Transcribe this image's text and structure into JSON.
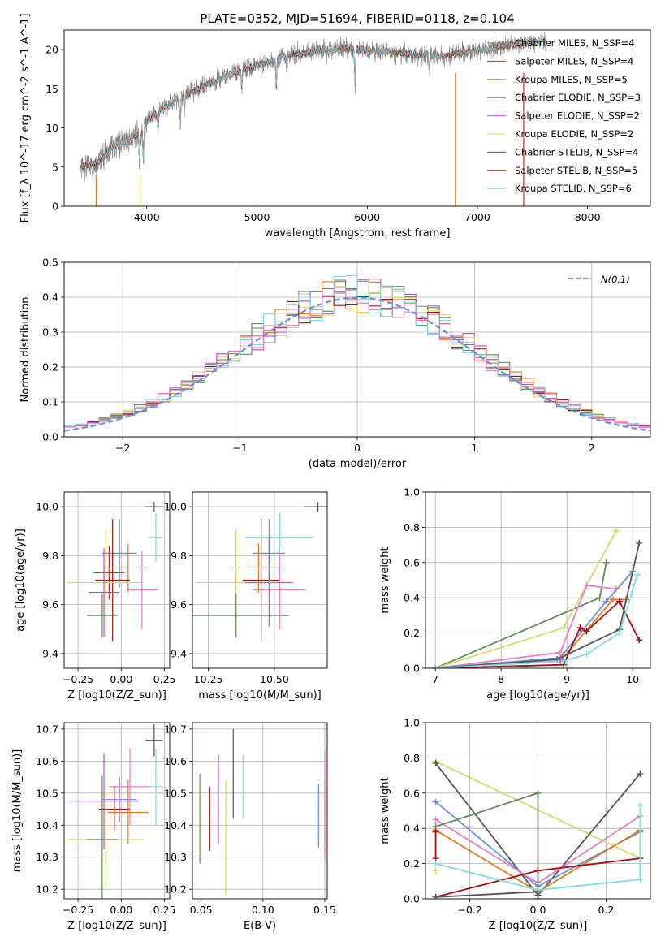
{
  "figure": {
    "title": "PLATE=0352, MJD=51694, FIBERID=0118, z=0.104"
  },
  "colors": [
    "#7f7f7f",
    "#d62728",
    "#e07b1a",
    "#5e8c5e",
    "#b452d8",
    "#d4d96b",
    "#555555",
    "#a31212",
    "#7fdbe4",
    "#6a8fdf",
    "#e77fc0"
  ],
  "chart_data": [
    {
      "id": "spectrum",
      "type": "line",
      "xlabel": "wavelength [Angstrom, rest frame]",
      "ylabel": "Flux [f_λ 10^-17 erg cm^-2 s^-1 A^-1]",
      "xlim": [
        3250,
        8570
      ],
      "ylim": [
        0,
        22.5
      ],
      "xticks": [
        4000,
        5000,
        6000,
        7000,
        8000
      ],
      "yticks": [
        0,
        5,
        10,
        15,
        20
      ],
      "grid": false,
      "legend_position": "top-right",
      "continuum": {
        "x": [
          3400,
          3550,
          3700,
          3850,
          3950,
          4000,
          4150,
          4300,
          4500,
          4700,
          4900,
          5100,
          5300,
          5500,
          5800,
          6100,
          6400,
          6700,
          7000,
          7300,
          7600
        ],
        "y": [
          5.0,
          5.6,
          7.6,
          8.6,
          9.4,
          10.8,
          12.5,
          13.8,
          15.2,
          16.5,
          17.5,
          18.5,
          19.3,
          19.7,
          20.2,
          19.8,
          19.4,
          19.2,
          19.9,
          20.6,
          21.1
        ]
      },
      "series": [
        {
          "name": "Chabrier MILES, N_SSP=4",
          "color": "#7f7f7f"
        },
        {
          "name": "Salpeter MILES, N_SSP=4",
          "color": "#d62728"
        },
        {
          "name": "Kroupa MILES, N_SSP=5",
          "color": "#e07b1a"
        },
        {
          "name": "Chabrier ELODIE, N_SSP=3",
          "color": "#5e8c5e"
        },
        {
          "name": "Salpeter ELODIE, N_SSP=2",
          "color": "#b452d8"
        },
        {
          "name": "Kroupa ELODIE, N_SSP=2",
          "color": "#d4d96b"
        },
        {
          "name": "Chabrier STELIB, N_SSP=4",
          "color": "#555555"
        },
        {
          "name": "Salpeter STELIB, N_SSP=5",
          "color": "#a31212"
        },
        {
          "name": "Kroupa STELIB, N_SSP=6",
          "color": "#7fdbe4"
        }
      ]
    },
    {
      "id": "residual-hist",
      "type": "line",
      "xlabel": "(data-model)/error",
      "ylabel": "Normed distribution",
      "xlim": [
        -2.5,
        2.5
      ],
      "ylim": [
        0,
        0.5
      ],
      "xticks": [
        -2,
        -1,
        0,
        1,
        2
      ],
      "xtick_labels": [
        "−2",
        "−1",
        "0",
        "1",
        "2"
      ],
      "yticks": [
        0.0,
        0.1,
        0.2,
        0.3,
        0.4,
        0.5
      ],
      "grid": true,
      "legend_position": "top-right",
      "legend": "N(0,1)",
      "bin_width": 0.1,
      "reference_curve": "standard normal density",
      "series_colors": [
        "#7f7f7f",
        "#e07b1a",
        "#5e8c5e",
        "#b452d8",
        "#d4d96b",
        "#a31212",
        "#7fdbe4",
        "#e77fc0"
      ]
    },
    {
      "id": "age-vs-Z",
      "type": "scatter",
      "xlabel": "Z [log10(Z/Z_sun)]",
      "ylabel": "age  [log10(age/yr)]",
      "xlim": [
        -0.33,
        0.28
      ],
      "ylim": [
        9.34,
        10.06
      ],
      "xticks": [
        -0.25,
        0.0,
        0.25
      ],
      "xtick_labels": [
        "−0.25",
        "0.00",
        "0.25"
      ],
      "yticks": [
        9.4,
        9.6,
        9.8,
        10.0
      ],
      "grid": true,
      "points": [
        {
          "x": 0.19,
          "xerr": 0.05,
          "y": 10.0,
          "yerr": 0.02,
          "color": "#555555"
        },
        {
          "x": 0.2,
          "xerr": 0.04,
          "y": 9.875,
          "yerr": 0.1,
          "color": "#7fdbe4"
        },
        {
          "x": -0.01,
          "xerr": 0.1,
          "y": 9.81,
          "yerr": 0.14,
          "color": "#6a8fdf"
        },
        {
          "x": 0.04,
          "xerr": 0.12,
          "y": 9.75,
          "yerr": 0.1,
          "color": "#e07b1a"
        },
        {
          "x": -0.07,
          "xerr": 0.09,
          "y": 9.73,
          "yerr": 0.11,
          "color": "#d62728"
        },
        {
          "x": -0.05,
          "xerr": 0.1,
          "y": 9.7,
          "yerr": 0.25,
          "color": "#a31212"
        },
        {
          "x": -0.09,
          "xerr": 0.22,
          "y": 9.69,
          "yerr": 0.22,
          "color": "#d4d96b"
        },
        {
          "x": 0.12,
          "xerr": 0.09,
          "y": 9.66,
          "yerr": 0.16,
          "color": "#e77fc0"
        },
        {
          "x": -0.1,
          "xerr": 0.09,
          "y": 9.65,
          "yerr": 0.18,
          "color": "#b452d8"
        },
        {
          "x": -0.11,
          "xerr": 0.09,
          "y": 9.555,
          "yerr": 0.09,
          "color": "#5e8c5e"
        }
      ]
    },
    {
      "id": "age-vs-mass",
      "type": "scatter",
      "xlabel": "mass [log10(M/M_sun)]",
      "ylabel": "",
      "xlim": [
        10.19,
        10.7
      ],
      "ylim": [
        9.34,
        10.06
      ],
      "xticks": [
        10.25,
        10.5
      ],
      "xtick_labels": [
        "10.25",
        "10.50"
      ],
      "yticks": [
        9.4,
        9.6,
        9.8,
        10.0
      ],
      "grid": true,
      "points": [
        {
          "x": 10.665,
          "xerr": 0.05,
          "y": 10.0,
          "yerr": 0.02,
          "color": "#555555"
        },
        {
          "x": 10.52,
          "xerr": 0.13,
          "y": 9.875,
          "yerr": 0.1,
          "color": "#7fdbe4"
        },
        {
          "x": 10.48,
          "xerr": 0.06,
          "y": 9.81,
          "yerr": 0.14,
          "color": "#6a8fdf"
        },
        {
          "x": 10.44,
          "xerr": 0.1,
          "y": 9.75,
          "yerr": 0.1,
          "color": "#e07b1a"
        },
        {
          "x": 10.45,
          "xerr": 0.07,
          "y": 9.7,
          "yerr": 0.25,
          "color": "#a31212"
        },
        {
          "x": 10.355,
          "xerr": 0.15,
          "y": 9.69,
          "yerr": 0.22,
          "color": "#d4d96b"
        },
        {
          "x": 10.52,
          "xerr": 0.1,
          "y": 9.66,
          "yerr": 0.16,
          "color": "#e77fc0"
        },
        {
          "x": 10.48,
          "xerr": 0.09,
          "y": 9.69,
          "yerr": 0.18,
          "color": "#b452d8"
        },
        {
          "x": 10.355,
          "xerr": 0.2,
          "y": 9.555,
          "yerr": 0.09,
          "color": "#5e8c5e"
        }
      ]
    },
    {
      "id": "weight-vs-age",
      "type": "line",
      "xlabel": "age  [log10(age/yr)]",
      "ylabel": "mass weight",
      "xlim": [
        6.85,
        10.27
      ],
      "ylim": [
        0,
        1.0
      ],
      "xticks": [
        7,
        8,
        9,
        10
      ],
      "yticks": [
        0.0,
        0.2,
        0.4,
        0.6,
        0.8,
        1.0
      ],
      "grid": true,
      "series": [
        {
          "color": "#5e8c5e",
          "x": [
            7.0,
            9.5,
            9.6
          ],
          "y": [
            0.0,
            0.4,
            0.6
          ]
        },
        {
          "color": "#d4d96b",
          "x": [
            7.0,
            8.95,
            9.75
          ],
          "y": [
            0.0,
            0.23,
            0.78
          ]
        },
        {
          "color": "#e77fc0",
          "x": [
            7.0,
            8.9,
            9.3,
            9.75
          ],
          "y": [
            0.0,
            0.09,
            0.47,
            0.45
          ]
        },
        {
          "color": "#6a8fdf",
          "x": [
            7.0,
            8.9,
            9.6,
            10.0
          ],
          "y": [
            0.0,
            0.06,
            0.38,
            0.55
          ]
        },
        {
          "color": "#e07b1a",
          "x": [
            7.0,
            8.9,
            9.7,
            9.9
          ],
          "y": [
            0.0,
            0.04,
            0.39,
            0.39
          ]
        },
        {
          "color": "#a31212",
          "x": [
            7.0,
            8.95,
            9.2,
            9.3,
            9.8,
            10.1
          ],
          "y": [
            0.0,
            0.02,
            0.23,
            0.21,
            0.38,
            0.16
          ]
        },
        {
          "color": "#555555",
          "x": [
            7.0,
            8.85,
            9.8,
            10.1
          ],
          "y": [
            0.0,
            0.05,
            0.22,
            0.71
          ]
        },
        {
          "color": "#7fdbe4",
          "x": [
            7.0,
            8.95,
            9.3,
            9.8,
            10.07
          ],
          "y": [
            0.0,
            0.04,
            0.08,
            0.2,
            0.53
          ]
        },
        {
          "color": "#b452d8",
          "x": [
            8.9
          ],
          "y": [
            0.05
          ]
        }
      ]
    },
    {
      "id": "mass-vs-Z",
      "type": "scatter",
      "xlabel": "Z [log10(Z/Z_sun)]",
      "ylabel": "mass [log10(M/M_sun)]",
      "xlim": [
        -0.33,
        0.28
      ],
      "ylim": [
        10.17,
        10.72
      ],
      "xticks": [
        -0.25,
        0.0,
        0.25
      ],
      "xtick_labels": [
        "−0.25",
        "0.00",
        "0.25"
      ],
      "yticks": [
        10.2,
        10.3,
        10.4,
        10.5,
        10.6,
        10.7
      ],
      "grid": true,
      "points": [
        {
          "x": 0.19,
          "xerr": 0.05,
          "y": 10.665,
          "yerr": 0.05,
          "color": "#555555"
        },
        {
          "x": 0.2,
          "xerr": 0.04,
          "y": 10.52,
          "yerr": 0.12,
          "color": "#7fdbe4"
        },
        {
          "x": 0.05,
          "xerr": 0.12,
          "y": 10.52,
          "yerr": 0.12,
          "color": "#e77fc0"
        },
        {
          "x": -0.01,
          "xerr": 0.1,
          "y": 10.48,
          "yerr": 0.07,
          "color": "#6a8fdf"
        },
        {
          "x": -0.1,
          "xerr": 0.2,
          "y": 10.475,
          "yerr": 0.15,
          "color": "#b452d8"
        },
        {
          "x": -0.04,
          "xerr": 0.09,
          "y": 10.45,
          "yerr": 0.07,
          "color": "#a31212"
        },
        {
          "x": 0.04,
          "xerr": 0.12,
          "y": 10.44,
          "yerr": 0.1,
          "color": "#e07b1a"
        },
        {
          "x": -0.09,
          "xerr": 0.22,
          "y": 10.355,
          "yerr": 0.15,
          "color": "#d4d96b"
        },
        {
          "x": -0.11,
          "xerr": 0.09,
          "y": 10.355,
          "yerr": 0.2,
          "color": "#5e8c5e"
        }
      ]
    },
    {
      "id": "mass-vs-ebv",
      "type": "scatter",
      "xlabel": "E(B-V)",
      "ylabel": "",
      "xlim": [
        0.043,
        0.152
      ],
      "ylim": [
        10.17,
        10.72
      ],
      "xticks": [
        0.05,
        0.1,
        0.15
      ],
      "xtick_labels": [
        "0.05",
        "0.10",
        "0.15"
      ],
      "yticks": [
        10.2,
        10.3,
        10.4,
        10.5,
        10.6,
        10.7
      ],
      "grid": true,
      "points": [
        {
          "x": 0.049,
          "y": 10.42,
          "yerr": 0.14,
          "color": "#5e8c5e"
        },
        {
          "x": 0.057,
          "y": 10.42,
          "yerr": 0.1,
          "color": "#a31212"
        },
        {
          "x": 0.064,
          "y": 10.48,
          "yerr": 0.14,
          "color": "#b452d8"
        },
        {
          "x": 0.07,
          "y": 10.36,
          "yerr": 0.18,
          "color": "#d4d96b"
        },
        {
          "x": 0.076,
          "y": 10.56,
          "yerr": 0.14,
          "color": "#555555"
        },
        {
          "x": 0.084,
          "y": 10.52,
          "yerr": 0.1,
          "color": "#7fdbe4"
        },
        {
          "x": 0.145,
          "y": 10.43,
          "yerr": 0.1,
          "color": "#6a8fdf"
        },
        {
          "x": 0.15,
          "y": 10.42,
          "yerr": 0.12,
          "color": "#e07b1a"
        },
        {
          "x": 0.15,
          "y": 10.46,
          "yerr": 0.17,
          "color": "#e77fc0"
        }
      ]
    },
    {
      "id": "weight-vs-Z",
      "type": "line",
      "xlabel": "Z [log10(Z/Z_sun)]",
      "ylabel": "mass weight",
      "xlim": [
        -0.33,
        0.33
      ],
      "ylim": [
        0,
        1.0
      ],
      "xticks": [
        -0.2,
        0.0,
        0.2
      ],
      "xtick_labels": [
        "−0.2",
        "0.0",
        "0.2"
      ],
      "yticks": [
        0.0,
        0.2,
        0.4,
        0.6,
        0.8,
        1.0
      ],
      "grid": true,
      "series": [
        {
          "color": "#d4d96b",
          "x": [
            -0.3,
            0.3
          ],
          "y": [
            0.78,
            0.23
          ]
        },
        {
          "color": "#555555",
          "x": [
            -0.3,
            0.0,
            0.3
          ],
          "y": [
            0.77,
            0.02,
            0.71
          ]
        },
        {
          "color": "#6a8fdf",
          "x": [
            -0.3,
            0.0,
            0.3
          ],
          "y": [
            0.55,
            0.07,
            0.38
          ]
        },
        {
          "color": "#e77fc0",
          "x": [
            -0.3,
            0.0,
            0.3
          ],
          "y": [
            0.45,
            0.09,
            0.47
          ]
        },
        {
          "color": "#5e8c5e",
          "x": [
            -0.3,
            0.0,
            0.0
          ],
          "y": [
            0.41,
            0.6,
            0.0
          ]
        },
        {
          "color": "#e07b1a",
          "x": [
            -0.3,
            0.0,
            0.3
          ],
          "y": [
            0.39,
            0.04,
            0.39
          ]
        },
        {
          "color": "#a31212",
          "x": [
            -0.3,
            0.0,
            0.3
          ],
          "y": [
            0.01,
            0.16,
            0.23
          ]
        },
        {
          "color": "#a31212",
          "x": [
            -0.3,
            -0.3
          ],
          "y": [
            0.38,
            0.23
          ]
        },
        {
          "color": "#7fdbe4",
          "x": [
            -0.3,
            0.0,
            0.3,
            0.3
          ],
          "y": [
            0.2,
            0.05,
            0.11,
            0.53
          ]
        },
        {
          "color": "#d4d96b",
          "x": [
            -0.3
          ],
          "y": [
            0.16
          ]
        },
        {
          "color": "#555555",
          "x": [
            -0.3,
            0.0
          ],
          "y": [
            0.01,
            0.04
          ]
        }
      ]
    }
  ]
}
